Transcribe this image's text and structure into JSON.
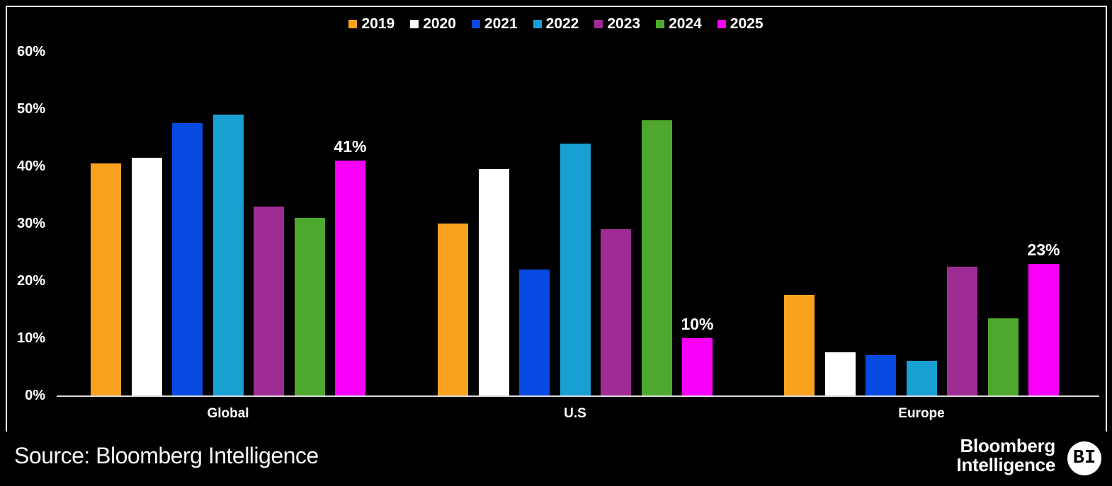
{
  "chart_data": {
    "type": "bar",
    "title": "",
    "categories": [
      "Global",
      "U.S",
      "Europe"
    ],
    "series": [
      {
        "name": "2019",
        "color": "#F9A21F",
        "values": [
          40.5,
          30,
          17.5
        ]
      },
      {
        "name": "2020",
        "color": "#FFFFFF",
        "values": [
          41.5,
          39.5,
          7.5
        ]
      },
      {
        "name": "2021",
        "color": "#0849E2",
        "values": [
          47.5,
          22,
          7
        ]
      },
      {
        "name": "2022",
        "color": "#18A0D2",
        "values": [
          49,
          44,
          6
        ]
      },
      {
        "name": "2023",
        "color": "#9F2C95",
        "values": [
          33,
          29,
          22.5
        ]
      },
      {
        "name": "2024",
        "color": "#4FA82E",
        "values": [
          31,
          48,
          13.5
        ]
      },
      {
        "name": "2025",
        "color": "#F800F8",
        "values": [
          41,
          10,
          23
        ]
      }
    ],
    "annotations": [
      {
        "category": "Global",
        "series": "2025",
        "text": "41%"
      },
      {
        "category": "U.S",
        "series": "2025",
        "text": "10%"
      },
      {
        "category": "Europe",
        "series": "2025",
        "text": "23%"
      }
    ],
    "ylim": [
      0,
      60
    ],
    "ytick_labels": [
      "0%",
      "10%",
      "20%",
      "30%",
      "40%",
      "50%",
      "60%"
    ],
    "legend_position": "top",
    "grid": false,
    "background_color": "#000000",
    "axis_color": "#D8D8D8",
    "text_color": "#FFFFFF"
  },
  "footer": {
    "source": "Source: Bloomberg Intelligence",
    "brand": {
      "line1": "Bloomberg",
      "line2": "Intelligence",
      "badge": "BI"
    }
  }
}
